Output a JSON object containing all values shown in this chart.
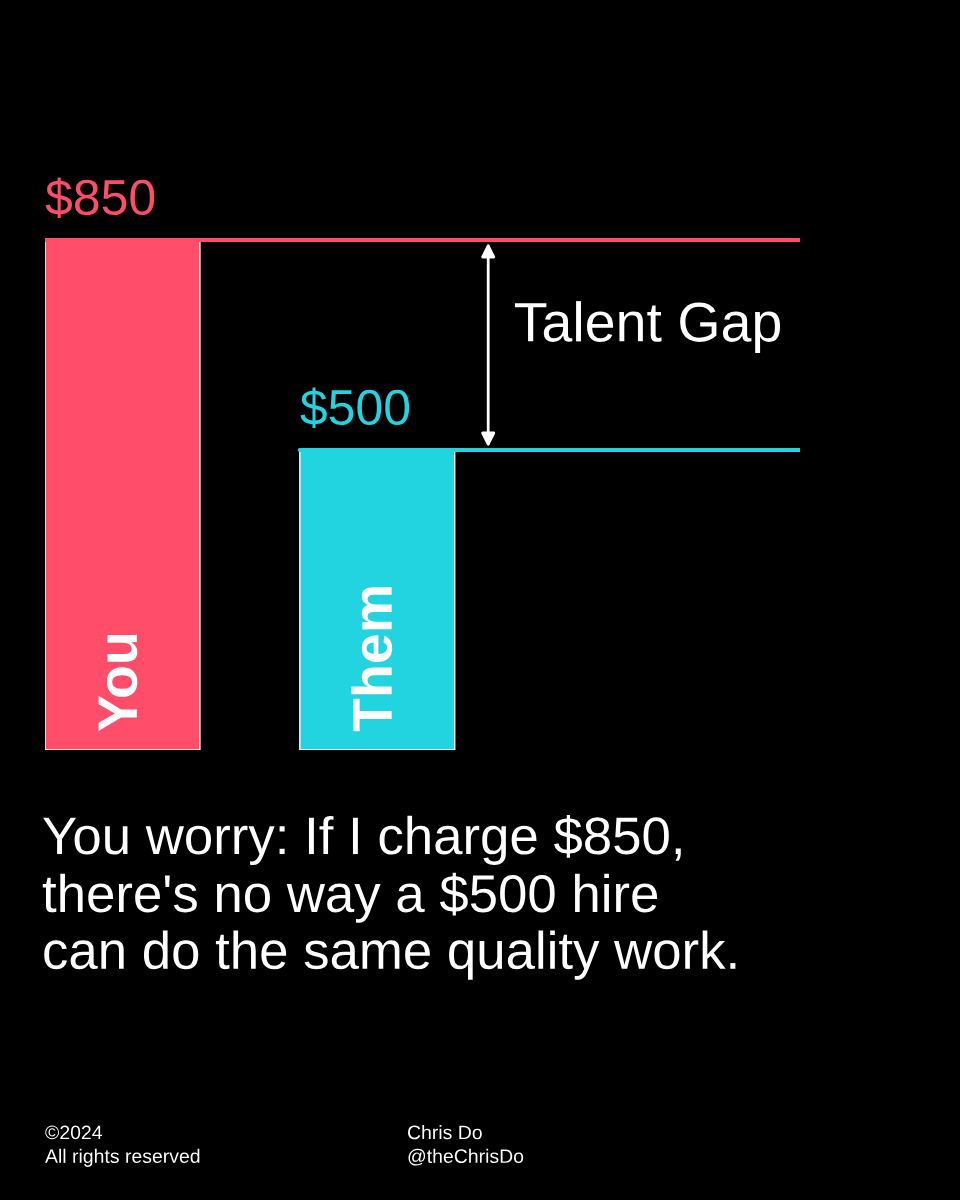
{
  "chart_data": {
    "type": "bar",
    "categories": [
      "You",
      "Them"
    ],
    "values": [
      850,
      500
    ],
    "colors": [
      "#ff4d6a",
      "#22d3e0"
    ],
    "value_labels": [
      "$850",
      "$500"
    ],
    "legend": false,
    "ref_lines": [
      {
        "axis": "y",
        "value": 850,
        "color": "#ff4d6a"
      },
      {
        "axis": "y",
        "value": 500,
        "color": "#22d3e0"
      }
    ],
    "annotations": [
      "Talent Gap",
      "You worry: If I charge $850,\nthere's no way a $500 hire\ncan do the same quality work.",
      "©2024\nAll rights reserved",
      "Chris Do\n@theChrisDo"
    ]
  }
}
